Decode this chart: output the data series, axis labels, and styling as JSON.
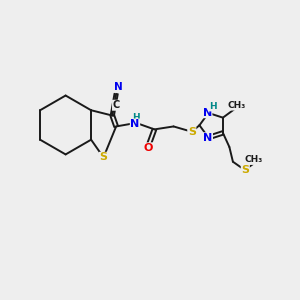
{
  "background_color": "#eeeeee",
  "bond_color": "#1a1a1a",
  "atom_colors": {
    "C": "#1a1a1a",
    "N": "#0000ee",
    "S": "#ccaa00",
    "O": "#ee0000",
    "H": "#008888"
  },
  "figsize": [
    3.0,
    3.0
  ],
  "dpi": 100
}
